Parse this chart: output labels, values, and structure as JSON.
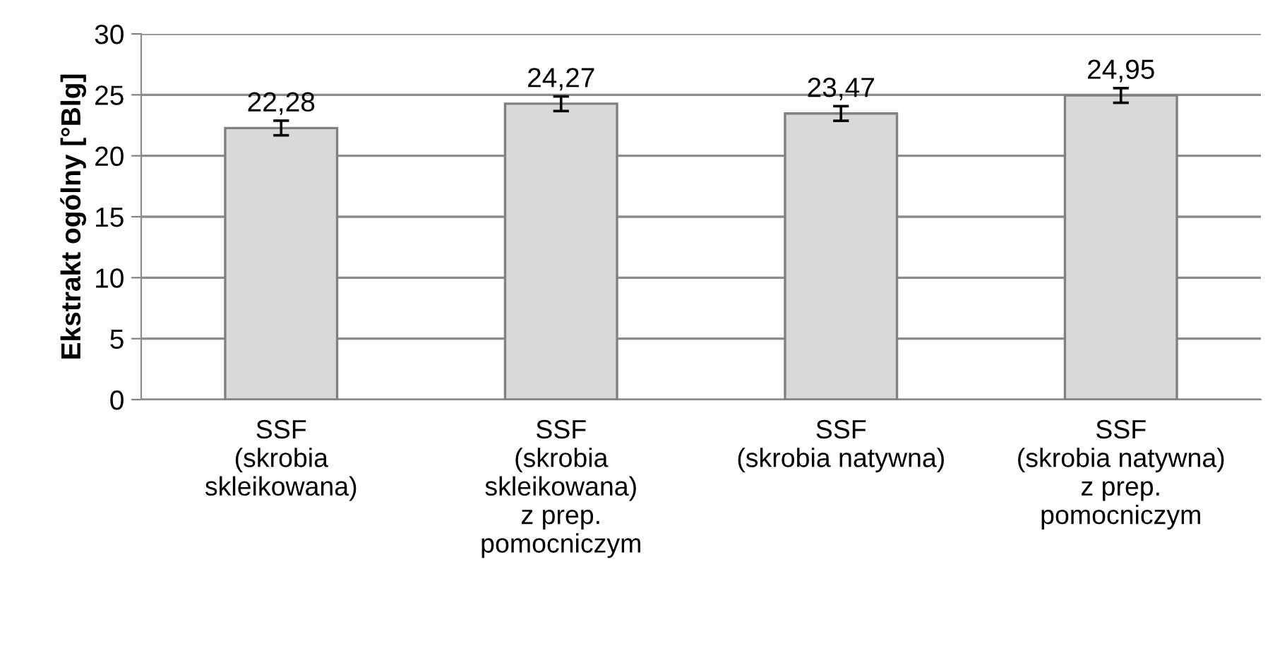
{
  "chart_data": {
    "type": "bar",
    "ylabel": "Ekstrakt ogólny [°Blg]",
    "categories": [
      "SSF\n(skrobia\nskleikowana)",
      "SSF\n(skrobia\nskleikowana)\nz prep.\npomocniczym",
      "SSF\n(skrobia natywna)",
      "SSF\n(skrobia natywna)\nz prep.\npomocniczym"
    ],
    "values": [
      22.28,
      24.27,
      23.47,
      24.95
    ],
    "errors": [
      0.6,
      0.6,
      0.6,
      0.6
    ],
    "value_labels": [
      "22,28",
      "24,27",
      "23,47",
      "24,95"
    ],
    "color": "#d9d9d9",
    "ylim": [
      0,
      30
    ],
    "yticks": [
      0,
      5,
      10,
      15,
      20,
      25,
      30
    ],
    "grid": "y"
  }
}
